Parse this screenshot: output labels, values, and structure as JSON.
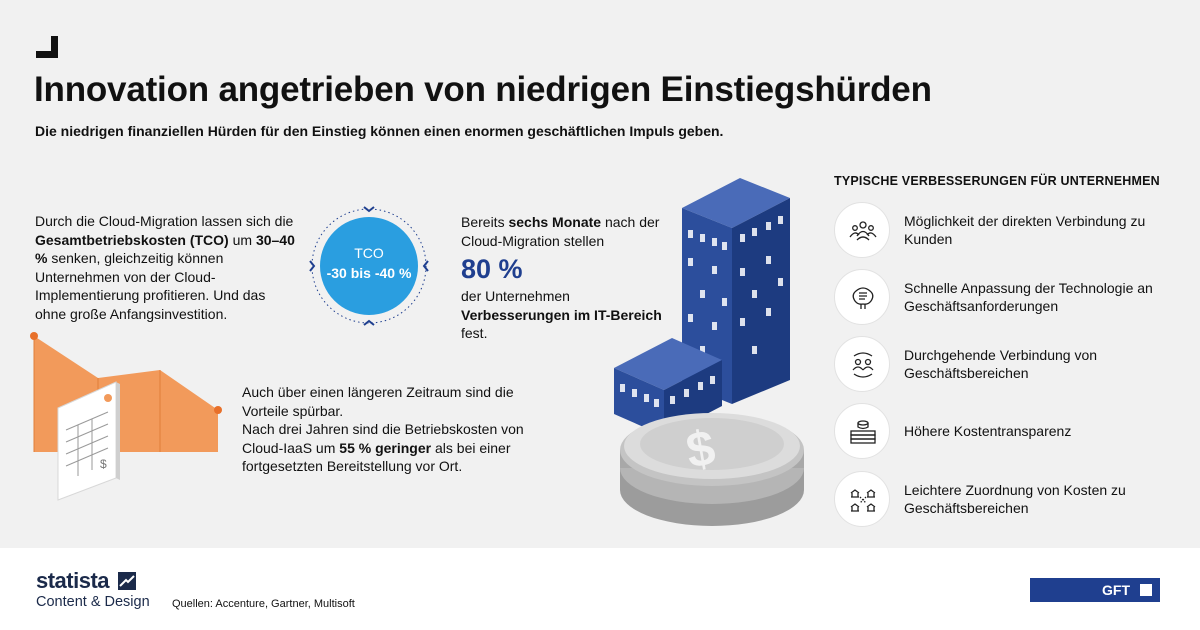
{
  "header": {
    "title": "Innovation angetrieben von niedrigen Einstiegshürden",
    "subtitle": "Die niedrigen finanziellen Hürden für den Einstieg können einen enormen geschäftlichen Impuls geben."
  },
  "block_tco": {
    "text_1": "Durch die Cloud-Migration lassen sich die ",
    "bold_1": "Gesamtbetriebskosten (TCO)",
    "text_2": " um ",
    "bold_2": "30–40 %",
    "text_3": " senken, gleichzeitig können Unternehmen von der Cloud-Implementierung profitieren. Und das ohne große Anfangsinvestition.",
    "badge_label": "TCO",
    "badge_value": "-30 bis -40 %"
  },
  "block_six_months": {
    "text_1": "Bereits ",
    "bold_1": "sechs Monate",
    "text_2": " nach der Cloud-Migration stellen",
    "big_number": "80 %",
    "text_3": "der Unternehmen ",
    "bold_2": "Verbesserungen im IT-Bereich",
    "text_4": " fest."
  },
  "block_long_term": {
    "text_1": "Auch über einen längeren Zeitraum sind die Vorteile spürbar.",
    "text_2": "Nach drei Jahren sind die Betriebskosten von Cloud-IaaS um ",
    "bold_1": "55 % geringer",
    "text_3": " als bei einer fortgesetzten Bereitstellung vor Ort."
  },
  "benefits": {
    "heading": "TYPISCHE VERBESSERUNGEN FÜR UNTERNEHMEN",
    "items": [
      {
        "label": "Möglichkeit der direkten Verbindung zu Kunden",
        "icon": "people-group-icon"
      },
      {
        "label": "Schnelle Anpassung der Technologie an Geschäftsanforderungen",
        "icon": "brain-chip-icon"
      },
      {
        "label": "Durchgehende Verbindung von Geschäftsbereichen",
        "icon": "connected-people-icon"
      },
      {
        "label": "Höhere Kostentransparenz",
        "icon": "money-stack-icon"
      },
      {
        "label": "Leichtere Zuordnung von Kosten zu Geschäftsbereichen",
        "icon": "buildings-network-icon"
      }
    ]
  },
  "footer": {
    "brand": "statista",
    "brand_sub": "Content & Design",
    "sources": "Quellen: Accenture, Gartner, Multisoft",
    "partner": "GFT"
  },
  "colors": {
    "accent_blue": "#1f3f8f",
    "circle_blue": "#2a9ee0",
    "orange": "#f29a5b",
    "background": "#f1f1f1"
  }
}
